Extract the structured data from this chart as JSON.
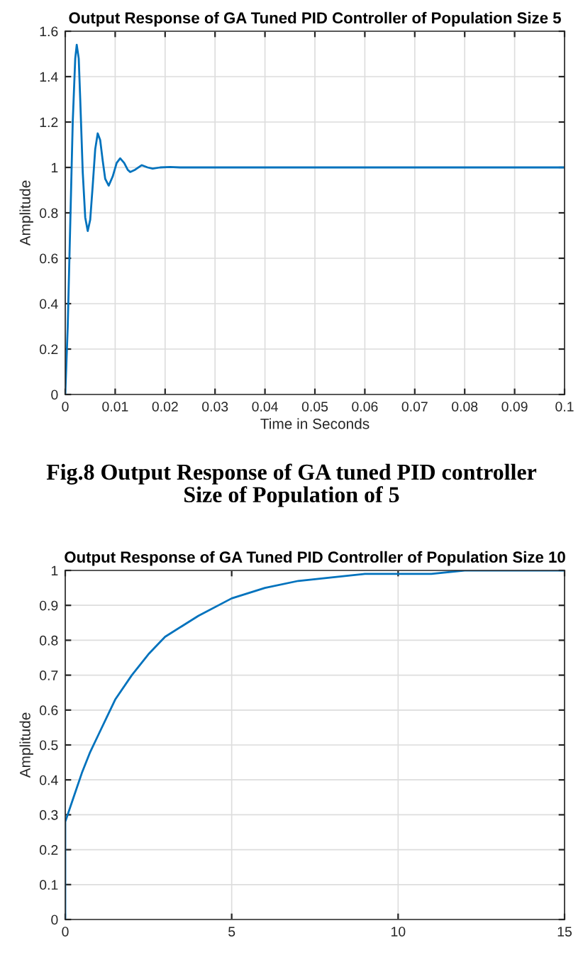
{
  "chart_data": [
    {
      "type": "line",
      "title": "Output Response of GA Tuned PID Controller of Population Size 5",
      "xlabel": "Time in Seconds",
      "ylabel": "Amplitude",
      "annotations": [
        "Fig.8 Output Response of GA tuned PID controller\nSize of Population of 5"
      ],
      "series": [
        {
          "color": "#0072bd",
          "x": [
            0,
            0.0005,
            0.001,
            0.0015,
            0.002,
            0.0023,
            0.0027,
            0.003,
            0.0035,
            0.004,
            0.0045,
            0.005,
            0.0055,
            0.006,
            0.0065,
            0.007,
            0.0075,
            0.008,
            0.0087,
            0.0095,
            0.0103,
            0.011,
            0.0118,
            0.0125,
            0.013,
            0.014,
            0.0153,
            0.0165,
            0.0175,
            0.019,
            0.021,
            0.023,
            0.1
          ],
          "values": [
            0,
            0.3,
            0.75,
            1.2,
            1.48,
            1.54,
            1.48,
            1.3,
            0.98,
            0.78,
            0.72,
            0.77,
            0.92,
            1.08,
            1.15,
            1.12,
            1.03,
            0.95,
            0.92,
            0.96,
            1.02,
            1.04,
            1.02,
            0.99,
            0.98,
            0.99,
            1.01,
            1.0,
            0.995,
            1.0,
            1.002,
            1.0,
            1.0
          ]
        }
      ],
      "xlim": [
        0,
        0.1
      ],
      "xticks": [
        0,
        0.01,
        0.02,
        0.03,
        0.04,
        0.05,
        0.06,
        0.07,
        0.08,
        0.09,
        0.1
      ],
      "ylim": [
        0,
        1.6
      ],
      "yticks": [
        0,
        0.2,
        0.4,
        0.6,
        0.8,
        1,
        1.2,
        1.4,
        1.6
      ],
      "grid": true,
      "legend": false,
      "marker": "none",
      "line_style": "solid"
    },
    {
      "type": "line",
      "title": "Output Response of GA Tuned PID Controller of Population Size 10",
      "ylabel": "Amplitude",
      "series": [
        {
          "color": "#0072bd",
          "x": [
            0,
            0,
            0.25,
            0.5,
            0.75,
            1,
            1.5,
            2,
            2.5,
            3,
            3.5,
            4,
            5,
            6,
            7,
            8,
            9,
            10,
            11,
            12,
            13,
            14,
            15
          ],
          "values": [
            0,
            0.28,
            0.35,
            0.42,
            0.48,
            0.53,
            0.63,
            0.7,
            0.76,
            0.81,
            0.84,
            0.87,
            0.92,
            0.95,
            0.97,
            0.98,
            0.99,
            0.99,
            0.99,
            1.0,
            1.0,
            1.0,
            1.0
          ]
        }
      ],
      "xlim": [
        0,
        15
      ],
      "xticks": [
        0,
        5,
        10,
        15
      ],
      "ylim": [
        0,
        1
      ],
      "yticks": [
        0,
        0.1,
        0.2,
        0.3,
        0.4,
        0.5,
        0.6,
        0.7,
        0.8,
        0.9,
        1
      ],
      "grid": true,
      "legend": false,
      "marker": "none",
      "line_style": "solid"
    }
  ]
}
